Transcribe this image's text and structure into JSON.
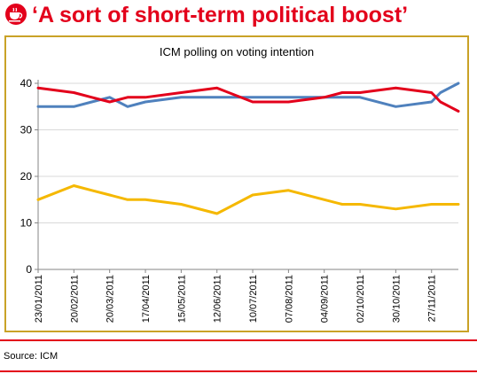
{
  "slide": {
    "title": "‘A sort of short-term political boost’",
    "source": "Source: ICM",
    "logo_icon": "teacup-icon",
    "colors": {
      "title": "#e3001b",
      "frame": "#c9a227",
      "rule": "#e3001b"
    }
  },
  "chart_data": {
    "type": "line",
    "title": "ICM polling on voting intention",
    "xlabel": "",
    "ylabel": "",
    "ylim": [
      0,
      40
    ],
    "yticks": [
      0,
      10,
      20,
      30,
      40
    ],
    "grid": true,
    "legend": "none",
    "categories": [
      "23/01/2011",
      "20/02/2011",
      "20/03/2011",
      "17/04/2011",
      "15/05/2011",
      "12/06/2011",
      "10/07/2011",
      "07/08/2011",
      "04/09/2011",
      "02/10/2011",
      "30/10/2011",
      "27/11/2011"
    ],
    "x": [
      "23/01/2011",
      "20/02/2011",
      "06/03/2011",
      "20/03/2011",
      "03/04/2011",
      "17/04/2011",
      "15/05/2011",
      "12/06/2011",
      "10/07/2011",
      "07/08/2011",
      "04/09/2011",
      "18/09/2011",
      "02/10/2011",
      "30/10/2011",
      "27/11/2011",
      "04/12/2011",
      "18/12/2011"
    ],
    "series": [
      {
        "color": "#4f81bd",
        "values": [
          35,
          35,
          36,
          37,
          35,
          36,
          37,
          37,
          37,
          37,
          37,
          37,
          37,
          35,
          36,
          38,
          40
        ]
      },
      {
        "color": "#e3001b",
        "values": [
          39,
          38,
          37,
          36,
          37,
          37,
          38,
          39,
          36,
          36,
          37,
          38,
          38,
          39,
          38,
          36,
          34
        ]
      },
      {
        "color": "#f5b800",
        "values": [
          15,
          18,
          17,
          16,
          15,
          15,
          14,
          12,
          16,
          17,
          15,
          14,
          14,
          13,
          14,
          14,
          14
        ]
      }
    ]
  }
}
